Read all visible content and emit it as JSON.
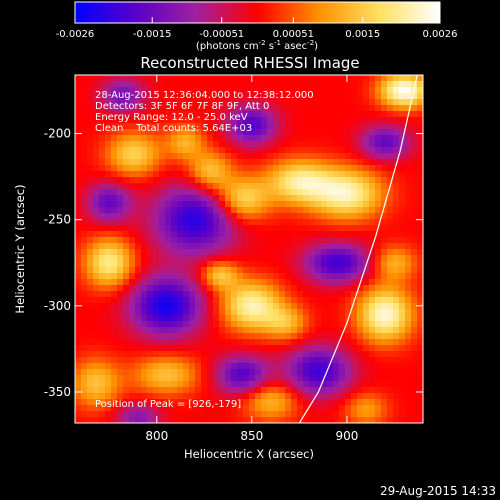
{
  "chart_data": {
    "type": "heatmap",
    "title": "Reconstructed RHESSI Image",
    "xlabel": "Heliocentric X (arcsec)",
    "ylabel": "Heliocentric Y (arcsec)",
    "xlim": [
      757,
      940
    ],
    "ylim": [
      -368,
      -166
    ],
    "xticks": [
      "800",
      "850",
      "900"
    ],
    "xtick_values": [
      800,
      850,
      900
    ],
    "yticks": [
      "-200",
      "-250",
      "-300",
      "-350"
    ],
    "ytick_values": [
      -200,
      -250,
      -300,
      -350
    ],
    "colorbar": {
      "ticks": [
        "-0.0026",
        "-0.0015",
        "-0.00051",
        "0.00051",
        "0.0015",
        "0.0026"
      ],
      "tick_values": [
        -0.0026,
        -0.0015,
        -0.00051,
        0.00051,
        0.0015,
        0.0026
      ],
      "range": [
        -0.0026,
        0.0026
      ],
      "unit_parts": [
        "(photons cm",
        "-2",
        " s",
        "-1",
        " asec",
        "-2",
        ")"
      ],
      "colors": [
        "#0000ff",
        "#5a00c8",
        "#a020a0",
        "#ff0000",
        "#ff9000",
        "#ffe060",
        "#ffffff"
      ]
    },
    "annotations": [
      "28-Aug-2015 12:36:04.000 to 12:38:12.000",
      "Detectors: 3F 5F 6F 7F 8F 9F, Att 0",
      "Energy Range: 12.0 - 25.0 keV",
      "Clean    Total counts: 5.64E+03"
    ],
    "peak_label": "Position of Peak = [926,-179]",
    "peak": [
      926,
      -179
    ],
    "limb_curve": [
      [
        937,
        -166
      ],
      [
        928,
        -210
      ],
      [
        915,
        -260
      ],
      [
        900,
        -310
      ],
      [
        885,
        -350
      ],
      [
        875,
        -368
      ]
    ],
    "sources": [
      {
        "x": 930,
        "y": -175,
        "sx": 9,
        "sy": 7,
        "amp": 0.0026
      },
      {
        "x": 900,
        "y": -235,
        "sx": 13,
        "sy": 10,
        "amp": 0.0022
      },
      {
        "x": 875,
        "y": -228,
        "sx": 12,
        "sy": 9,
        "amp": 0.002
      },
      {
        "x": 845,
        "y": -238,
        "sx": 10,
        "sy": 9,
        "amp": 0.0018
      },
      {
        "x": 828,
        "y": -222,
        "sx": 8,
        "sy": 8,
        "amp": 0.0015
      },
      {
        "x": 788,
        "y": -212,
        "sx": 10,
        "sy": 9,
        "amp": 0.0016
      },
      {
        "x": 815,
        "y": -205,
        "sx": 7,
        "sy": 7,
        "amp": 0.0012
      },
      {
        "x": 775,
        "y": -275,
        "sx": 9,
        "sy": 10,
        "amp": 0.002
      },
      {
        "x": 850,
        "y": -300,
        "sx": 11,
        "sy": 10,
        "amp": 0.0022
      },
      {
        "x": 833,
        "y": -282,
        "sx": 7,
        "sy": 6,
        "amp": 0.0015
      },
      {
        "x": 920,
        "y": -305,
        "sx": 10,
        "sy": 11,
        "amp": 0.0024
      },
      {
        "x": 868,
        "y": -310,
        "sx": 8,
        "sy": 7,
        "amp": 0.0012
      },
      {
        "x": 768,
        "y": -345,
        "sx": 9,
        "sy": 10,
        "amp": 0.0014
      },
      {
        "x": 805,
        "y": -340,
        "sx": 12,
        "sy": 8,
        "amp": 0.0014
      },
      {
        "x": 860,
        "y": -355,
        "sx": 10,
        "sy": 8,
        "amp": 0.0013
      },
      {
        "x": 910,
        "y": -360,
        "sx": 8,
        "sy": 7,
        "amp": 0.001
      },
      {
        "x": 925,
        "y": -275,
        "sx": 8,
        "sy": 7,
        "amp": 0.0012
      },
      {
        "x": 820,
        "y": -250,
        "sx": 15,
        "sy": 14,
        "amp": -0.0022
      },
      {
        "x": 805,
        "y": -300,
        "sx": 13,
        "sy": 12,
        "amp": -0.0024
      },
      {
        "x": 895,
        "y": -275,
        "sx": 12,
        "sy": 8,
        "amp": -0.002
      },
      {
        "x": 885,
        "y": -338,
        "sx": 12,
        "sy": 10,
        "amp": -0.002
      },
      {
        "x": 775,
        "y": -240,
        "sx": 8,
        "sy": 8,
        "amp": -0.0016
      },
      {
        "x": 850,
        "y": -195,
        "sx": 9,
        "sy": 8,
        "amp": -0.0018
      },
      {
        "x": 782,
        "y": -178,
        "sx": 8,
        "sy": 7,
        "amp": -0.0014
      },
      {
        "x": 920,
        "y": -205,
        "sx": 9,
        "sy": 7,
        "amp": -0.0016
      },
      {
        "x": 845,
        "y": -340,
        "sx": 10,
        "sy": 8,
        "amp": -0.0018
      },
      {
        "x": 790,
        "y": -365,
        "sx": 8,
        "sy": 6,
        "amp": -0.0012
      }
    ],
    "grid": false
  },
  "footer": {
    "timestamp": "29-Aug-2015 14:33"
  }
}
